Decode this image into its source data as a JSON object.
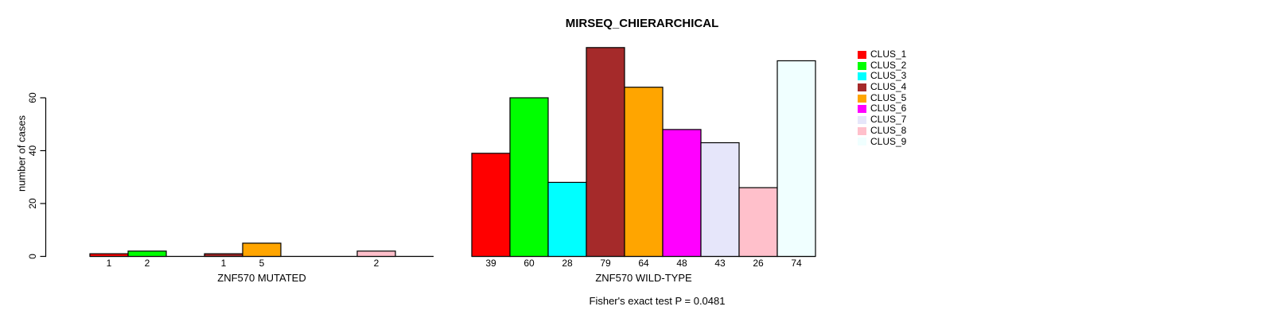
{
  "chart_data": {
    "type": "bar",
    "title": "MIRSEQ_CHIERARCHICAL",
    "ylabel": "number of cases",
    "yticks": [
      0,
      20,
      40,
      60
    ],
    "ylim": [
      0,
      79
    ],
    "grid": false,
    "legend_position": "right",
    "clusters": [
      {
        "name": "CLUS_1",
        "color": "#FF0000"
      },
      {
        "name": "CLUS_2",
        "color": "#00FF00"
      },
      {
        "name": "CLUS_3",
        "color": "#00FFFF"
      },
      {
        "name": "CLUS_4",
        "color": "#A52A2A"
      },
      {
        "name": "CLUS_5",
        "color": "#FFA500"
      },
      {
        "name": "CLUS_6",
        "color": "#FF00FF"
      },
      {
        "name": "CLUS_7",
        "color": "#E6E6FA"
      },
      {
        "name": "CLUS_8",
        "color": "#FFC0CB"
      },
      {
        "name": "CLUS_9",
        "color": "#F0FFFF"
      }
    ],
    "groups": [
      {
        "xlabel": "ZNF570 MUTATED",
        "values": [
          1,
          2,
          0,
          1,
          5,
          0,
          0,
          2,
          0
        ]
      },
      {
        "xlabel": "ZNF570 WILD-TYPE",
        "values": [
          39,
          60,
          28,
          79,
          64,
          48,
          43,
          26,
          74
        ]
      }
    ],
    "annotation": "Fisher's exact test P = 0.0481"
  }
}
